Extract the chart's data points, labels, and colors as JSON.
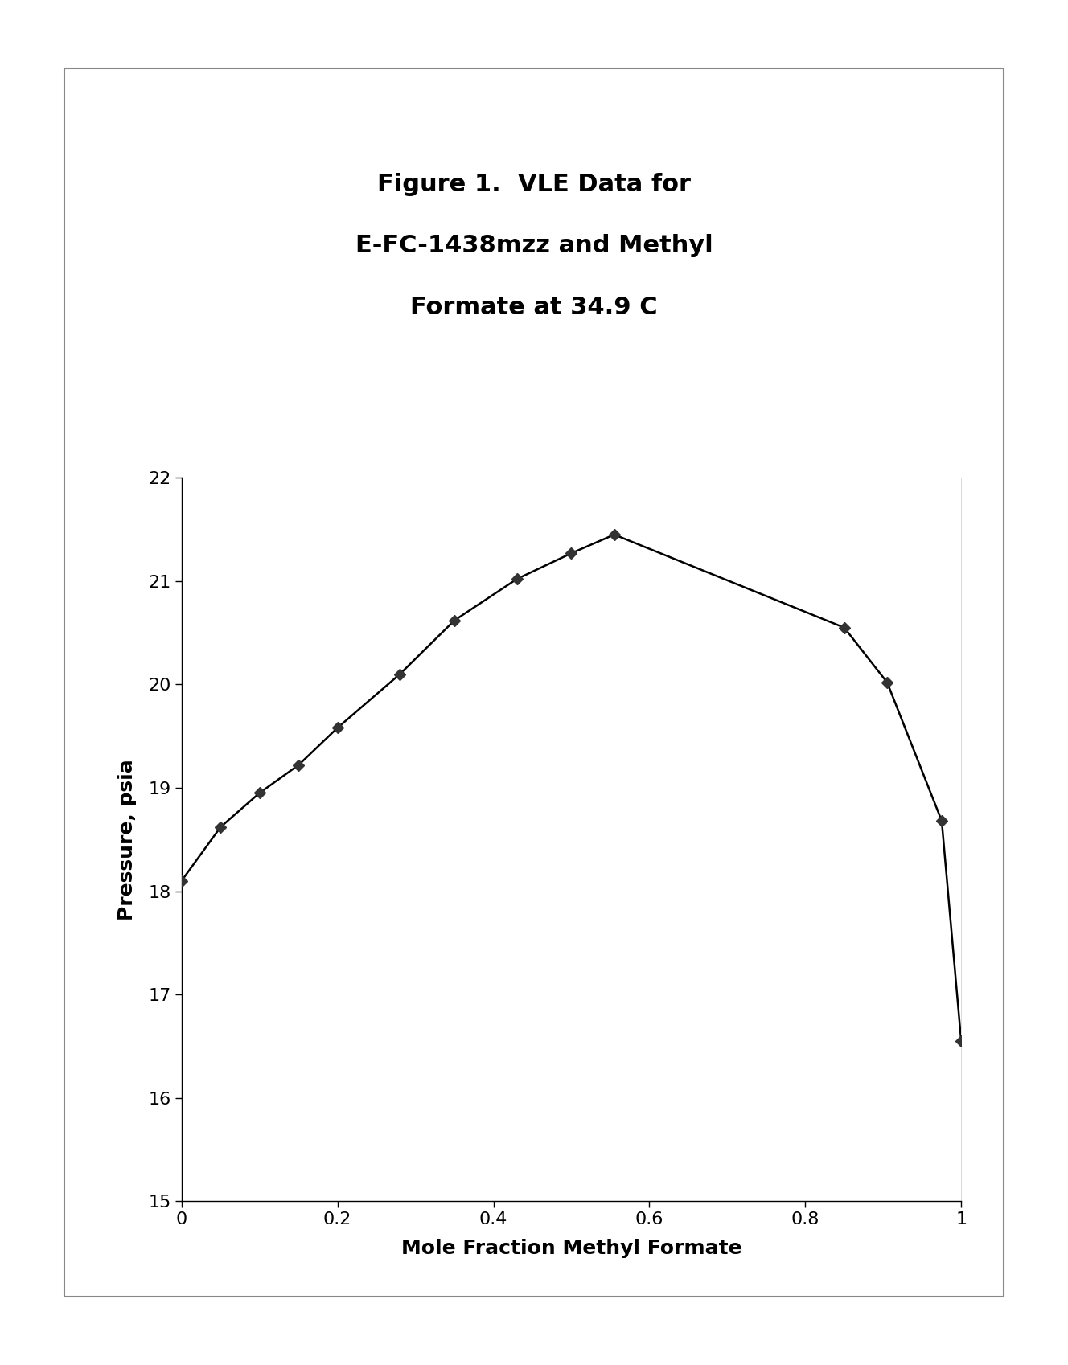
{
  "title_line1": "Figure 1.  VLE Data for",
  "title_line2": "E-FC-1438mzz and Methyl",
  "title_line3": "Formate at 34.9 C",
  "xlabel": "Mole Fraction Methyl Formate",
  "ylabel": "Pressure, psia",
  "x": [
    0.0,
    0.05,
    0.1,
    0.15,
    0.2,
    0.28,
    0.35,
    0.43,
    0.5,
    0.555,
    0.85,
    0.905,
    0.975,
    1.0
  ],
  "y": [
    18.1,
    18.62,
    18.95,
    19.22,
    19.58,
    20.1,
    20.62,
    21.02,
    21.27,
    21.45,
    20.55,
    20.02,
    18.68,
    16.55
  ],
  "xlim": [
    0,
    1
  ],
  "ylim": [
    15,
    22
  ],
  "xticks": [
    0,
    0.2,
    0.4,
    0.6,
    0.8,
    1.0
  ],
  "yticks": [
    15,
    16,
    17,
    18,
    19,
    20,
    21,
    22
  ],
  "line_color": "#000000",
  "marker_color": "#333333",
  "marker_style": "D",
  "marker_size": 7,
  "line_width": 1.8,
  "title_fontsize": 22,
  "label_fontsize": 18,
  "tick_fontsize": 16,
  "figure_bg": "#ffffff",
  "plot_bg": "#ffffff",
  "outer_box_color": "#888888"
}
